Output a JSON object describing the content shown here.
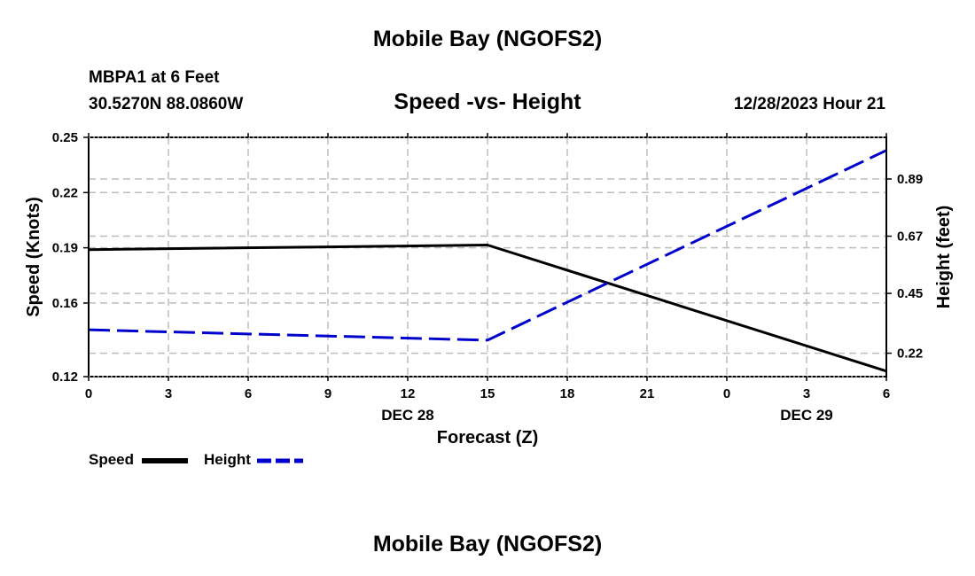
{
  "page": {
    "title": "Mobile Bay (NGOFS2)",
    "footer_title": "Mobile Bay (NGOFS2)",
    "station": "MBPA1 at 6 Feet",
    "coordinates": "30.5270N  88.0860W",
    "subtitle": "Speed -vs- Height",
    "datetime": "12/28/2023 Hour 21"
  },
  "chart_data": {
    "type": "line",
    "title": "Speed -vs- Height",
    "xlabel": "Forecast (Z)",
    "ylabel": "Speed (Knots)",
    "y2label": "Height (feet)",
    "x": [
      0,
      15,
      30
    ],
    "x_ticks": [
      "0",
      "3",
      "6",
      "9",
      "12",
      "15",
      "18",
      "21",
      "0",
      "3",
      "6"
    ],
    "date_labels": [
      {
        "label": "DEC 28",
        "tick_index": 4
      },
      {
        "label": "DEC 29",
        "tick_index": 9
      }
    ],
    "ylim": [
      0.12,
      0.25
    ],
    "y_ticks": [
      "0.25",
      "0.22",
      "0.19",
      "0.16",
      "0.12"
    ],
    "y_tick_values": [
      0.25,
      0.22,
      0.19,
      0.16,
      0.12
    ],
    "y2lim": [
      0.13,
      1.05
    ],
    "y2_ticks": [
      "0.89",
      "0.67",
      "0.45",
      "0.22"
    ],
    "y2_tick_values": [
      0.89,
      0.67,
      0.45,
      0.22
    ],
    "grid": true,
    "series": [
      {
        "name": "Speed",
        "axis": "left",
        "color": "#000000",
        "style": "solid",
        "values": [
          0.189,
          0.1915,
          0.123
        ]
      },
      {
        "name": "Height",
        "axis": "right",
        "color": "#0000cc",
        "style": "dashed",
        "values": [
          0.31,
          0.27,
          1.0
        ]
      }
    ],
    "legend": [
      {
        "label": "Speed",
        "color": "#000000",
        "style": "solid"
      },
      {
        "label": "Height",
        "color": "#0000cc",
        "style": "dashed"
      }
    ]
  }
}
